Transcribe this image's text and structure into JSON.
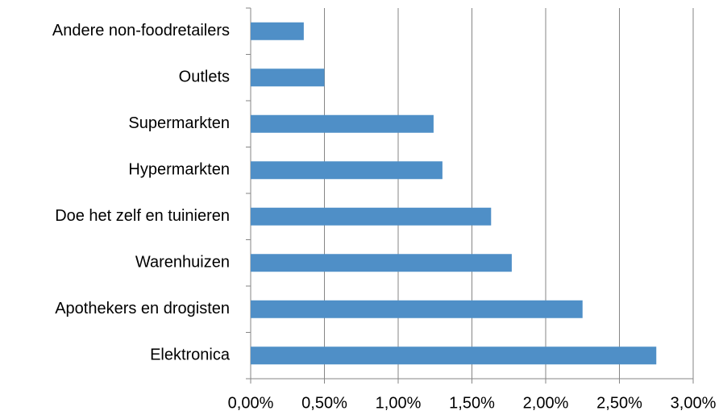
{
  "chart_data": {
    "type": "bar",
    "orientation": "horizontal",
    "categories": [
      "Andere non-foodretailers",
      "Outlets",
      "Supermarkten",
      "Hypermarkten",
      "Doe het zelf en tuinieren",
      "Warenhuizen",
      "Apothekers en drogisten",
      "Elektronica"
    ],
    "values": [
      0.36,
      0.5,
      1.24,
      1.3,
      1.63,
      1.77,
      2.25,
      2.75
    ],
    "color": "#4f8fc7",
    "xlim": [
      0,
      3
    ],
    "xticks": [
      {
        "value": 0,
        "label": "0,00%"
      },
      {
        "value": 0.5,
        "label": "0,50%"
      },
      {
        "value": 1,
        "label": "1,00%"
      },
      {
        "value": 1.5,
        "label": "1,50%"
      },
      {
        "value": 2,
        "label": "2,00%"
      },
      {
        "value": 2.5,
        "label": "2,50%"
      },
      {
        "value": 3,
        "label": "3,00%"
      }
    ],
    "grid": true
  }
}
